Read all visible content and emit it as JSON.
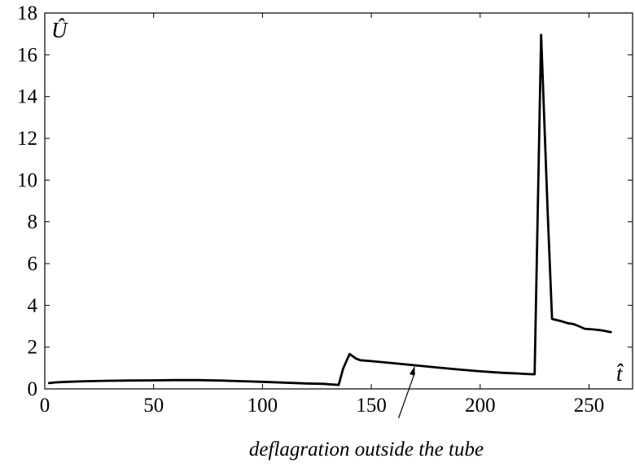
{
  "chart_data": {
    "type": "line",
    "title": "",
    "xlabel": "t̂",
    "ylabel": "Û",
    "xlim": [
      0,
      270
    ],
    "ylim": [
      0,
      18
    ],
    "xticks": [
      0,
      50,
      100,
      150,
      200,
      250
    ],
    "yticks": [
      0,
      2,
      4,
      6,
      8,
      10,
      12,
      14,
      16,
      18
    ],
    "grid": false,
    "annotation": {
      "text": "deflagration outside the tube",
      "x": 170,
      "y": 1.1
    },
    "series": [
      {
        "points": [
          [
            2,
            0.28
          ],
          [
            5,
            0.31
          ],
          [
            10,
            0.34
          ],
          [
            20,
            0.37
          ],
          [
            30,
            0.39
          ],
          [
            40,
            0.4
          ],
          [
            50,
            0.41
          ],
          [
            60,
            0.42
          ],
          [
            70,
            0.42
          ],
          [
            80,
            0.4
          ],
          [
            90,
            0.37
          ],
          [
            100,
            0.34
          ],
          [
            110,
            0.3
          ],
          [
            120,
            0.26
          ],
          [
            128,
            0.24
          ],
          [
            135,
            0.19
          ],
          [
            137,
            0.95
          ],
          [
            140,
            1.67
          ],
          [
            143,
            1.45
          ],
          [
            145,
            1.37
          ],
          [
            150,
            1.33
          ],
          [
            160,
            1.23
          ],
          [
            170,
            1.13
          ],
          [
            180,
            1.03
          ],
          [
            190,
            0.93
          ],
          [
            200,
            0.84
          ],
          [
            210,
            0.77
          ],
          [
            215,
            0.75
          ],
          [
            217,
            0.74
          ],
          [
            220,
            0.72
          ],
          [
            224,
            0.7
          ],
          [
            225,
            0.7
          ],
          [
            228,
            16.95
          ],
          [
            231,
            8.5
          ],
          [
            233,
            3.35
          ],
          [
            237,
            3.25
          ],
          [
            240,
            3.15
          ],
          [
            243,
            3.1
          ],
          [
            245,
            3.02
          ],
          [
            248,
            2.88
          ],
          [
            252,
            2.85
          ],
          [
            256,
            2.8
          ],
          [
            260,
            2.72
          ]
        ]
      }
    ]
  }
}
